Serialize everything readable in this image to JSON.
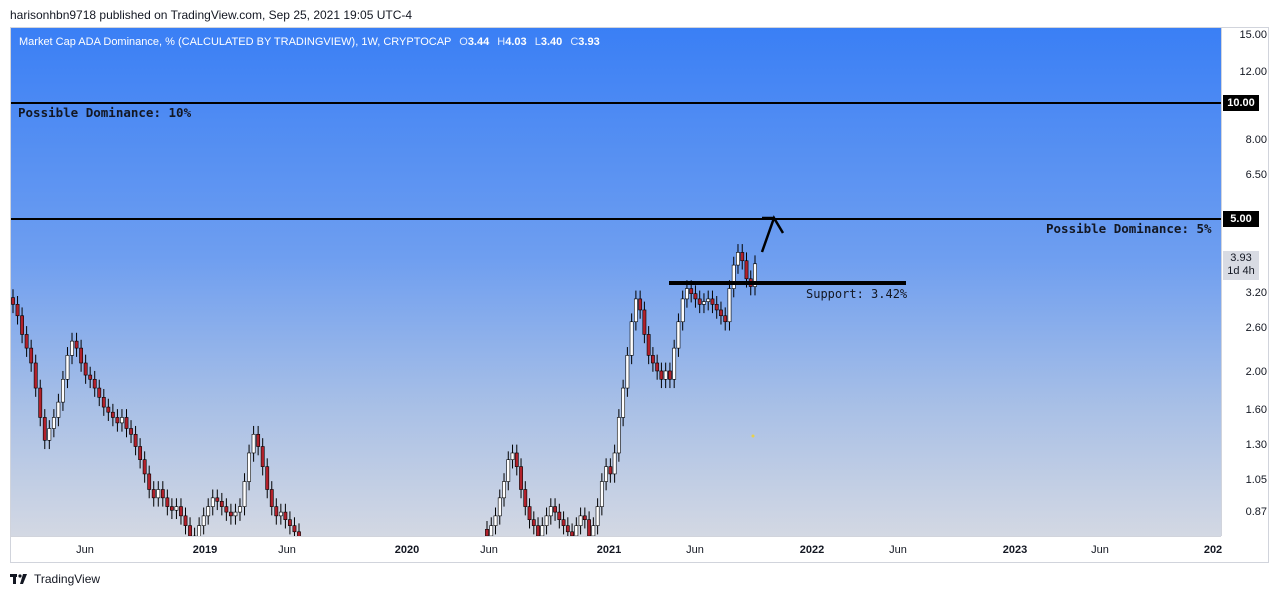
{
  "header": {
    "published": "harisonhbn9718 published on TradingView.com, Sep 25, 2021 19:05 UTC-4"
  },
  "legend": {
    "symbol": "Market Cap ADA Dominance, % (CALCULATED BY TRADINGVIEW), 1W, CRYPTOCAP",
    "o_label": "O",
    "o": "3.44",
    "h_label": "H",
    "h": "4.03",
    "l_label": "L",
    "l": "3.40",
    "c_label": "C",
    "c": "3.93"
  },
  "annotations": {
    "dominance_10": "Possible Dominance: 10%",
    "dominance_5": "Possible Dominance: 5%",
    "support": "Support: 3.42%"
  },
  "price_axis": {
    "ticks": [
      "15.00",
      "12.00",
      "8.00",
      "6.50",
      "3.20",
      "2.60",
      "2.00",
      "1.60",
      "1.30",
      "1.05",
      "0.87"
    ],
    "tag_10": "10.00",
    "tag_5": "5.00",
    "last_price": "3.93",
    "countdown": "1d 4h"
  },
  "time_axis": {
    "labels": [
      {
        "text": "Jun",
        "year": false
      },
      {
        "text": "2019",
        "year": true
      },
      {
        "text": "Jun",
        "year": false
      },
      {
        "text": "2020",
        "year": true
      },
      {
        "text": "Jun",
        "year": false
      },
      {
        "text": "2021",
        "year": true
      },
      {
        "text": "Jun",
        "year": false
      },
      {
        "text": "2022",
        "year": true
      },
      {
        "text": "Jun",
        "year": false
      },
      {
        "text": "2023",
        "year": true
      },
      {
        "text": "Jun",
        "year": false
      },
      {
        "text": "202",
        "year": true
      }
    ]
  },
  "footer": {
    "brand": "TradingView"
  },
  "colors": {
    "up": "#ffffff",
    "down": "#b2212b",
    "line": "#000000",
    "pane_top": "#3a7ff5",
    "pane_bottom": "#d3d8e3"
  },
  "chart_data": {
    "type": "candlestick",
    "scale": "log",
    "interval": "1W",
    "ylim": [
      0.8,
      15.6
    ],
    "horizontal_lines": [
      10.0,
      5.0
    ],
    "support_level": 3.42,
    "last": {
      "open": 3.44,
      "high": 4.03,
      "low": 3.4,
      "close": 3.93
    },
    "series": [
      {
        "segment": 1,
        "closes": [
          3.1,
          2.9,
          2.6,
          2.4,
          2.2,
          1.9,
          1.6,
          1.4,
          1.5,
          1.6,
          1.75,
          2.0,
          2.3,
          2.5,
          2.4,
          2.2,
          2.05,
          2.0,
          1.9,
          1.8,
          1.7,
          1.65,
          1.6,
          1.55,
          1.6,
          1.5,
          1.45,
          1.35,
          1.25,
          1.15,
          1.05,
          1.0,
          1.05,
          1.0,
          0.95,
          0.93,
          0.95,
          0.9,
          0.85,
          0.8,
          0.78,
          0.85,
          0.9,
          0.95,
          1.0,
          0.98,
          0.95,
          0.92,
          0.9,
          0.92,
          0.95,
          1.1,
          1.3,
          1.45,
          1.35,
          1.2,
          1.05,
          0.95,
          0.9,
          0.92,
          0.88,
          0.85,
          0.82,
          0.78
        ]
      },
      {
        "segment": 2,
        "closes": [
          0.8,
          0.85,
          0.9,
          1.0,
          1.1,
          1.25,
          1.3,
          1.2,
          1.05,
          0.95,
          0.88,
          0.85,
          0.8,
          0.85,
          0.9,
          0.95,
          0.92,
          0.88,
          0.85,
          0.82,
          0.8,
          0.85,
          0.9,
          0.88,
          0.8,
          0.85,
          0.95,
          1.1,
          1.2,
          1.15,
          1.3,
          1.6,
          1.9,
          2.3,
          2.8,
          3.2,
          3.0,
          2.6,
          2.3,
          2.2,
          2.1,
          2.0,
          2.1,
          2.0,
          2.4,
          2.8,
          3.2,
          3.4,
          3.3,
          3.2,
          3.1,
          3.15,
          3.2,
          3.1,
          3.0,
          2.9,
          2.8,
          3.4,
          3.9,
          4.2,
          4.0,
          3.6,
          3.44,
          3.93
        ]
      }
    ]
  }
}
